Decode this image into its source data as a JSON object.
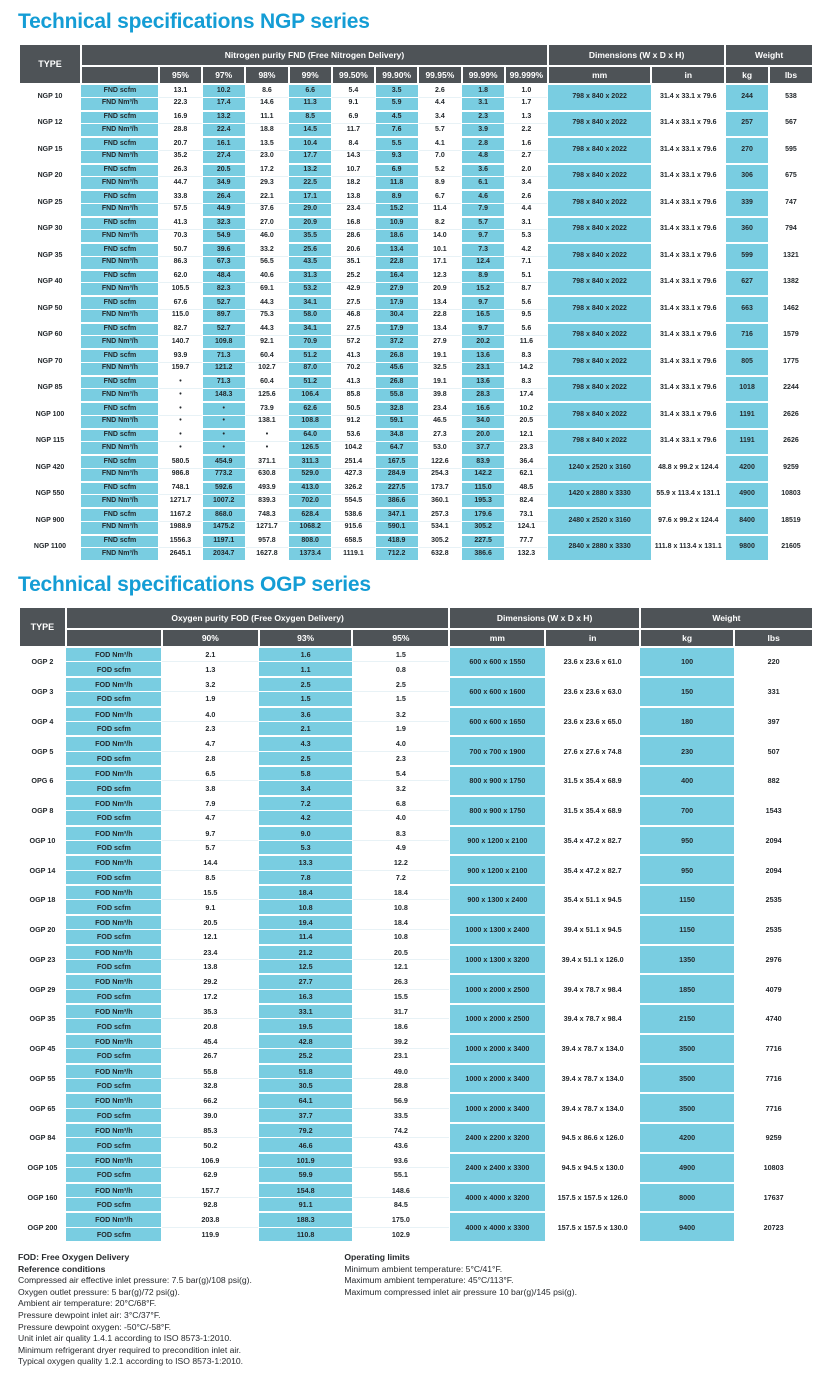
{
  "colors": {
    "accent_title": "#149dd5",
    "header_dark": "#4e5357",
    "cell_cyan": "#79cde1"
  },
  "ngp": {
    "title": "Technical specifications NGP series",
    "header": {
      "type": "TYPE",
      "purity_group": "Nitrogen purity FND (Free Nitrogen Delivery)",
      "purity_cols": [
        "95%",
        "97%",
        "98%",
        "99%",
        "99.50%",
        "99.90%",
        "99.95%",
        "99.99%",
        "99.999%"
      ],
      "dims_group": "Dimensions (W x D x H)",
      "dims_cols": [
        "mm",
        "in"
      ],
      "weight_group": "Weight",
      "weight_cols": [
        "kg",
        "lbs"
      ]
    },
    "unit_labels": [
      "FND scfm",
      "FND Nm³/h"
    ],
    "rows": [
      {
        "type": "NGP 10",
        "r1": [
          "13.1",
          "10.2",
          "8.6",
          "6.6",
          "5.4",
          "3.5",
          "2.6",
          "1.8",
          "1.0"
        ],
        "r2": [
          "22.3",
          "17.4",
          "14.6",
          "11.3",
          "9.1",
          "5.9",
          "4.4",
          "3.1",
          "1.7"
        ],
        "mm": "798 x 840 x 2022",
        "in": "31.4 x 33.1 x 79.6",
        "kg": "244",
        "lbs": "538"
      },
      {
        "type": "NGP 12",
        "r1": [
          "16.9",
          "13.2",
          "11.1",
          "8.5",
          "6.9",
          "4.5",
          "3.4",
          "2.3",
          "1.3"
        ],
        "r2": [
          "28.8",
          "22.4",
          "18.8",
          "14.5",
          "11.7",
          "7.6",
          "5.7",
          "3.9",
          "2.2"
        ],
        "mm": "798 x 840 x 2022",
        "in": "31.4 x 33.1 x 79.6",
        "kg": "257",
        "lbs": "567"
      },
      {
        "type": "NGP 15",
        "r1": [
          "20.7",
          "16.1",
          "13.5",
          "10.4",
          "8.4",
          "5.5",
          "4.1",
          "2.8",
          "1.6"
        ],
        "r2": [
          "35.2",
          "27.4",
          "23.0",
          "17.7",
          "14.3",
          "9.3",
          "7.0",
          "4.8",
          "2.7"
        ],
        "mm": "798 x 840 x 2022",
        "in": "31.4 x 33.1 x 79.6",
        "kg": "270",
        "lbs": "595"
      },
      {
        "type": "NGP 20",
        "r1": [
          "26.3",
          "20.5",
          "17.2",
          "13.2",
          "10.7",
          "6.9",
          "5.2",
          "3.6",
          "2.0"
        ],
        "r2": [
          "44.7",
          "34.9",
          "29.3",
          "22.5",
          "18.2",
          "11.8",
          "8.9",
          "6.1",
          "3.4"
        ],
        "mm": "798 x 840 x 2022",
        "in": "31.4 x 33.1 x 79.6",
        "kg": "306",
        "lbs": "675"
      },
      {
        "type": "NGP 25",
        "r1": [
          "33.8",
          "26.4",
          "22.1",
          "17.1",
          "13.8",
          "8.9",
          "6.7",
          "4.6",
          "2.6"
        ],
        "r2": [
          "57.5",
          "44.9",
          "37.6",
          "29.0",
          "23.4",
          "15.2",
          "11.4",
          "7.9",
          "4.4"
        ],
        "mm": "798 x 840 x 2022",
        "in": "31.4 x 33.1 x 79.6",
        "kg": "339",
        "lbs": "747"
      },
      {
        "type": "NGP 30",
        "r1": [
          "41.3",
          "32.3",
          "27.0",
          "20.9",
          "16.8",
          "10.9",
          "8.2",
          "5.7",
          "3.1"
        ],
        "r2": [
          "70.3",
          "54.9",
          "46.0",
          "35.5",
          "28.6",
          "18.6",
          "14.0",
          "9.7",
          "5.3"
        ],
        "mm": "798 x 840 x 2022",
        "in": "31.4 x 33.1 x 79.6",
        "kg": "360",
        "lbs": "794"
      },
      {
        "type": "NGP 35",
        "r1": [
          "50.7",
          "39.6",
          "33.2",
          "25.6",
          "20.6",
          "13.4",
          "10.1",
          "7.3",
          "4.2"
        ],
        "r2": [
          "86.3",
          "67.3",
          "56.5",
          "43.5",
          "35.1",
          "22.8",
          "17.1",
          "12.4",
          "7.1"
        ],
        "mm": "798 x 840 x 2022",
        "in": "31.4 x 33.1 x 79.6",
        "kg": "599",
        "lbs": "1321"
      },
      {
        "type": "NGP 40",
        "r1": [
          "62.0",
          "48.4",
          "40.6",
          "31.3",
          "25.2",
          "16.4",
          "12.3",
          "8.9",
          "5.1"
        ],
        "r2": [
          "105.5",
          "82.3",
          "69.1",
          "53.2",
          "42.9",
          "27.9",
          "20.9",
          "15.2",
          "8.7"
        ],
        "mm": "798 x 840 x 2022",
        "in": "31.4 x 33.1 x 79.6",
        "kg": "627",
        "lbs": "1382"
      },
      {
        "type": "NGP 50",
        "r1": [
          "67.6",
          "52.7",
          "44.3",
          "34.1",
          "27.5",
          "17.9",
          "13.4",
          "9.7",
          "5.6"
        ],
        "r2": [
          "115.0",
          "89.7",
          "75.3",
          "58.0",
          "46.8",
          "30.4",
          "22.8",
          "16.5",
          "9.5"
        ],
        "mm": "798 x 840 x 2022",
        "in": "31.4 x 33.1 x 79.6",
        "kg": "663",
        "lbs": "1462"
      },
      {
        "type": "NGP 60",
        "r1": [
          "82.7",
          "52.7",
          "44.3",
          "34.1",
          "27.5",
          "17.9",
          "13.4",
          "9.7",
          "5.6"
        ],
        "r2": [
          "140.7",
          "109.8",
          "92.1",
          "70.9",
          "57.2",
          "37.2",
          "27.9",
          "20.2",
          "11.6"
        ],
        "mm": "798 x 840 x 2022",
        "in": "31.4 x 33.1 x 79.6",
        "kg": "716",
        "lbs": "1579"
      },
      {
        "type": "NGP 70",
        "r1": [
          "93.9",
          "71.3",
          "60.4",
          "51.2",
          "41.3",
          "26.8",
          "19.1",
          "13.6",
          "8.3"
        ],
        "r2": [
          "159.7",
          "121.2",
          "102.7",
          "87.0",
          "70.2",
          "45.6",
          "32.5",
          "23.1",
          "14.2"
        ],
        "mm": "798 x 840 x 2022",
        "in": "31.4 x 33.1 x 79.6",
        "kg": "805",
        "lbs": "1775"
      },
      {
        "type": "NGP 85",
        "r1": [
          "•",
          "71.3",
          "60.4",
          "51.2",
          "41.3",
          "26.8",
          "19.1",
          "13.6",
          "8.3"
        ],
        "r2": [
          "•",
          "148.3",
          "125.6",
          "106.4",
          "85.8",
          "55.8",
          "39.8",
          "28.3",
          "17.4"
        ],
        "mm": "798 x 840 x 2022",
        "in": "31.4 x 33.1 x 79.6",
        "kg": "1018",
        "lbs": "2244"
      },
      {
        "type": "NGP 100",
        "r1": [
          "•",
          "•",
          "73.9",
          "62.6",
          "50.5",
          "32.8",
          "23.4",
          "16.6",
          "10.2"
        ],
        "r2": [
          "•",
          "•",
          "138.1",
          "108.8",
          "91.2",
          "59.1",
          "46.5",
          "34.0",
          "20.5"
        ],
        "mm": "798 x 840 x 2022",
        "in": "31.4 x 33.1 x 79.6",
        "kg": "1191",
        "lbs": "2626"
      },
      {
        "type": "NGP 115",
        "r1": [
          "•",
          "•",
          "•",
          "64.0",
          "53.6",
          "34.8",
          "27.3",
          "20.0",
          "12.1"
        ],
        "r2": [
          "•",
          "•",
          "•",
          "126.5",
          "104.2",
          "64.7",
          "53.0",
          "37.7",
          "23.3"
        ],
        "mm": "798 x 840 x 2022",
        "in": "31.4 x 33.1 x 79.6",
        "kg": "1191",
        "lbs": "2626"
      },
      {
        "type": "NGP 420",
        "r1": [
          "580.5",
          "454.9",
          "371.1",
          "311.3",
          "251.4",
          "167.5",
          "122.6",
          "83.9",
          "36.4"
        ],
        "r2": [
          "986.8",
          "773.2",
          "630.8",
          "529.0",
          "427.3",
          "284.9",
          "254.3",
          "142.2",
          "62.1"
        ],
        "mm": "1240 x 2520 x 3160",
        "in": "48.8 x 99.2 x 124.4",
        "kg": "4200",
        "lbs": "9259"
      },
      {
        "type": "NGP 550",
        "r1": [
          "748.1",
          "592.6",
          "493.9",
          "413.0",
          "326.2",
          "227.5",
          "173.7",
          "115.0",
          "48.5"
        ],
        "r2": [
          "1271.7",
          "1007.2",
          "839.3",
          "702.0",
          "554.5",
          "386.6",
          "360.1",
          "195.3",
          "82.4"
        ],
        "mm": "1420 x 2880 x 3330",
        "in": "55.9 x 113.4 x 131.1",
        "kg": "4900",
        "lbs": "10803"
      },
      {
        "type": "NGP 900",
        "r1": [
          "1167.2",
          "868.0",
          "748.3",
          "628.4",
          "538.6",
          "347.1",
          "257.3",
          "179.6",
          "73.1"
        ],
        "r2": [
          "1988.9",
          "1475.2",
          "1271.7",
          "1068.2",
          "915.6",
          "590.1",
          "534.1",
          "305.2",
          "124.1"
        ],
        "mm": "2480 x 2520 x 3160",
        "in": "97.6 x 99.2 x 124.4",
        "kg": "8400",
        "lbs": "18519"
      },
      {
        "type": "NGP 1100",
        "r1": [
          "1556.3",
          "1197.1",
          "957.8",
          "808.0",
          "658.5",
          "418.9",
          "305.2",
          "227.5",
          "77.7"
        ],
        "r2": [
          "2645.1",
          "2034.7",
          "1627.8",
          "1373.4",
          "1119.1",
          "712.2",
          "632.8",
          "386.6",
          "132.3"
        ],
        "mm": "2840 x 2880 x 3330",
        "in": "111.8 x 113.4 x 131.1",
        "kg": "9800",
        "lbs": "21605"
      }
    ]
  },
  "ogp": {
    "title": "Technical specifications OGP series",
    "header": {
      "type": "TYPE",
      "purity_group": "Oxygen purity FOD (Free Oxygen Delivery)",
      "purity_cols": [
        "90%",
        "93%",
        "95%"
      ],
      "dims_group": "Dimensions (W x D x H)",
      "dims_cols": [
        "mm",
        "in"
      ],
      "weight_group": "Weight",
      "weight_cols": [
        "kg",
        "lbs"
      ]
    },
    "unit_labels": [
      "FOD Nm³/h",
      "FOD scfm"
    ],
    "rows": [
      {
        "type": "OGP 2",
        "r1": [
          "2.1",
          "1.6",
          "1.5"
        ],
        "r2": [
          "1.3",
          "1.1",
          "0.8"
        ],
        "mm": "600 x 600 x 1550",
        "in": "23.6 x 23.6 x 61.0",
        "kg": "100",
        "lbs": "220"
      },
      {
        "type": "OGP 3",
        "r1": [
          "3.2",
          "2.5",
          "2.5"
        ],
        "r2": [
          "1.9",
          "1.5",
          "1.5"
        ],
        "mm": "600 x 600 x 1600",
        "in": "23.6 x 23.6 x 63.0",
        "kg": "150",
        "lbs": "331"
      },
      {
        "type": "OGP 4",
        "r1": [
          "4.0",
          "3.6",
          "3.2"
        ],
        "r2": [
          "2.3",
          "2.1",
          "1.9"
        ],
        "mm": "600 x 600 x 1650",
        "in": "23.6 x 23.6 x 65.0",
        "kg": "180",
        "lbs": "397"
      },
      {
        "type": "OGP 5",
        "r1": [
          "4.7",
          "4.3",
          "4.0"
        ],
        "r2": [
          "2.8",
          "2.5",
          "2.3"
        ],
        "mm": "700 x 700 x 1900",
        "in": "27.6 x 27.6 x 74.8",
        "kg": "230",
        "lbs": "507"
      },
      {
        "type": "OPG 6",
        "r1": [
          "6.5",
          "5.8",
          "5.4"
        ],
        "r2": [
          "3.8",
          "3.4",
          "3.2"
        ],
        "mm": "800 x 900 x 1750",
        "in": "31.5 x 35.4 x 68.9",
        "kg": "400",
        "lbs": "882"
      },
      {
        "type": "OGP 8",
        "r1": [
          "7.9",
          "7.2",
          "6.8"
        ],
        "r2": [
          "4.7",
          "4.2",
          "4.0"
        ],
        "mm": "800 x 900 x 1750",
        "in": "31.5 x 35.4 x 68.9",
        "kg": "700",
        "lbs": "1543"
      },
      {
        "type": "OGP 10",
        "r1": [
          "9.7",
          "9.0",
          "8.3"
        ],
        "r2": [
          "5.7",
          "5.3",
          "4.9"
        ],
        "mm": "900 x 1200 x 2100",
        "in": "35.4 x 47.2 x 82.7",
        "kg": "950",
        "lbs": "2094"
      },
      {
        "type": "OGP 14",
        "r1": [
          "14.4",
          "13.3",
          "12.2"
        ],
        "r2": [
          "8.5",
          "7.8",
          "7.2"
        ],
        "mm": "900 x 1200 x 2100",
        "in": "35.4 x 47.2 x 82.7",
        "kg": "950",
        "lbs": "2094"
      },
      {
        "type": "OGP 18",
        "r1": [
          "15.5",
          "18.4",
          "18.4"
        ],
        "r2": [
          "9.1",
          "10.8",
          "10.8"
        ],
        "mm": "900 x 1300 x 2400",
        "in": "35.4 x 51.1 x 94.5",
        "kg": "1150",
        "lbs": "2535"
      },
      {
        "type": "OGP 20",
        "r1": [
          "20.5",
          "19.4",
          "18.4"
        ],
        "r2": [
          "12.1",
          "11.4",
          "10.8"
        ],
        "mm": "1000 x 1300 x 2400",
        "in": "39.4 x 51.1 x 94.5",
        "kg": "1150",
        "lbs": "2535"
      },
      {
        "type": "OGP 23",
        "r1": [
          "23.4",
          "21.2",
          "20.5"
        ],
        "r2": [
          "13.8",
          "12.5",
          "12.1"
        ],
        "mm": "1000 x 1300 x 3200",
        "in": "39.4 x 51.1 x 126.0",
        "kg": "1350",
        "lbs": "2976"
      },
      {
        "type": "OGP 29",
        "r1": [
          "29.2",
          "27.7",
          "26.3"
        ],
        "r2": [
          "17.2",
          "16.3",
          "15.5"
        ],
        "mm": "1000 x 2000 x 2500",
        "in": "39.4 x 78.7 x 98.4",
        "kg": "1850",
        "lbs": "4079"
      },
      {
        "type": "OGP 35",
        "r1": [
          "35.3",
          "33.1",
          "31.7"
        ],
        "r2": [
          "20.8",
          "19.5",
          "18.6"
        ],
        "mm": "1000 x 2000 x 2500",
        "in": "39.4 x 78.7 x 98.4",
        "kg": "2150",
        "lbs": "4740"
      },
      {
        "type": "OGP 45",
        "r1": [
          "45.4",
          "42.8",
          "39.2"
        ],
        "r2": [
          "26.7",
          "25.2",
          "23.1"
        ],
        "mm": "1000 x 2000 x 3400",
        "in": "39.4 x 78.7 x 134.0",
        "kg": "3500",
        "lbs": "7716"
      },
      {
        "type": "OGP 55",
        "r1": [
          "55.8",
          "51.8",
          "49.0"
        ],
        "r2": [
          "32.8",
          "30.5",
          "28.8"
        ],
        "mm": "1000 x 2000 x 3400",
        "in": "39.4 x 78.7 x 134.0",
        "kg": "3500",
        "lbs": "7716"
      },
      {
        "type": "OGP 65",
        "r1": [
          "66.2",
          "64.1",
          "56.9"
        ],
        "r2": [
          "39.0",
          "37.7",
          "33.5"
        ],
        "mm": "1000 x 2000 x 3400",
        "in": "39.4 x 78.7 x 134.0",
        "kg": "3500",
        "lbs": "7716"
      },
      {
        "type": "OGP 84",
        "r1": [
          "85.3",
          "79.2",
          "74.2"
        ],
        "r2": [
          "50.2",
          "46.6",
          "43.6"
        ],
        "mm": "2400 x 2200 x 3200",
        "in": "94.5 x 86.6 x 126.0",
        "kg": "4200",
        "lbs": "9259"
      },
      {
        "type": "OGP 105",
        "r1": [
          "106.9",
          "101.9",
          "93.6"
        ],
        "r2": [
          "62.9",
          "59.9",
          "55.1"
        ],
        "mm": "2400 x 2400 x 3300",
        "in": "94.5 x 94.5 x 130.0",
        "kg": "4900",
        "lbs": "10803"
      },
      {
        "type": "OGP 160",
        "r1": [
          "157.7",
          "154.8",
          "148.6"
        ],
        "r2": [
          "92.8",
          "91.1",
          "84.5"
        ],
        "mm": "4000 x 4000 x 3200",
        "in": "157.5 x 157.5 x 126.0",
        "kg": "8000",
        "lbs": "17637"
      },
      {
        "type": "OGP 200",
        "r1": [
          "203.8",
          "188.3",
          "175.0"
        ],
        "r2": [
          "119.9",
          "110.8",
          "102.9"
        ],
        "mm": "4000 x 4000 x 3300",
        "in": "157.5 x 157.5 x 130.0",
        "kg": "9400",
        "lbs": "20723"
      }
    ]
  },
  "footnotes": {
    "left": {
      "bold_lines": [
        "FOD: Free Oxygen Delivery",
        "Reference conditions"
      ],
      "lines": [
        "Compressed air effective inlet pressure: 7.5 bar(g)/108 psi(g).",
        "Oxygen outlet pressure: 5 bar(g)/72 psi(g).",
        "Ambient air temperature: 20°C/68°F.",
        "Pressure dewpoint inlet air: 3°C/37°F.",
        "Pressure dewpoint oxygen: -50°C/-58°F.",
        "Unit inlet air quality 1.4.1 according to ISO 8573-1:2010.",
        "Minimum refrigerant dryer required to precondition inlet air.",
        "Typical oxygen quality 1.2.1 according to ISO 8573-1:2010."
      ]
    },
    "right": {
      "bold_lines": [
        "Operating limits"
      ],
      "lines": [
        "Minimum ambient temperature: 5°C/41°F.",
        "Maximum ambient temperature: 45°C/113°F.",
        "Maximum compressed inlet air pressure 10 bar(g)/145 psi(g)."
      ]
    }
  }
}
